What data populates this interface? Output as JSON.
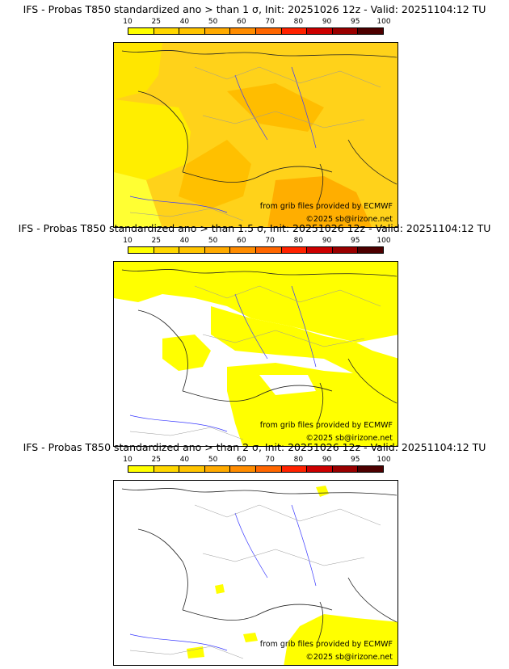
{
  "panels": [
    {
      "title": "IFS - Probas T850  standardized ano > than 1 σ, Init: 20251026 12z - Valid: 20251104:12 TU",
      "credit_source": "from grib files provided by ECMWF",
      "credit_copyright": "©2025 sb@irizone.net"
    },
    {
      "title": "IFS - Probas T850  standardized ano > than 1.5 σ, Init: 20251026 12z - Valid: 20251104:12 TU",
      "credit_source": "from grib files provided by ECMWF",
      "credit_copyright": "©2025 sb@irizone.net"
    },
    {
      "title": "IFS - Probas T850  standardized ano > than 2 σ, Init: 20251026 12z - Valid: 20251104:12 TU",
      "credit_source": "from grib files provided by ECMWF",
      "credit_copyright": "©2025 sb@irizone.net"
    }
  ],
  "legend": {
    "labels": [
      "10",
      "25",
      "40",
      "50",
      "60",
      "70",
      "80",
      "90",
      "95",
      "100"
    ],
    "colors": [
      "#ffff00",
      "#ffd700",
      "#ffc400",
      "#ffaa00",
      "#ff8c00",
      "#ff6600",
      "#ff2200",
      "#cc0000",
      "#990000",
      "#4d0000"
    ]
  }
}
